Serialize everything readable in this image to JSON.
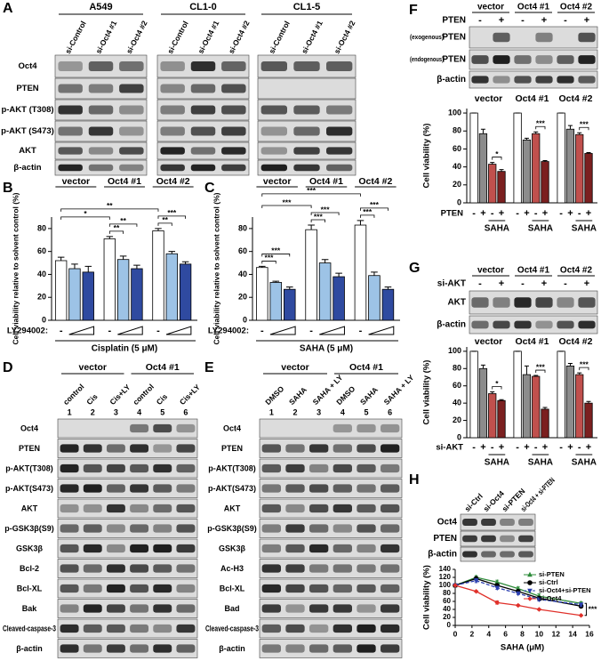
{
  "panel_labels": [
    "A",
    "B",
    "C",
    "D",
    "E",
    "F",
    "G",
    "H"
  ],
  "blots": {
    "A": {
      "groups": [
        "A549",
        "CL1-0",
        "CL1-5"
      ],
      "lanes": [
        "si-Control",
        "si-Oct4 #1",
        "si-Oct4 #2"
      ],
      "rows": [
        "Oct4",
        "PTEN",
        "p-AKT (T308)",
        "p-AKT (S473)",
        "AKT",
        "β-actin"
      ]
    },
    "D": {
      "groups": [
        "vector",
        "Oct4 #1"
      ],
      "lanes": [
        "control",
        "Cis",
        "Cis+LY",
        "control",
        "Cis",
        "Cis+LY"
      ],
      "lane_numbers": [
        1,
        2,
        3,
        4,
        5,
        6
      ],
      "rows": [
        "Oct4",
        "PTEN",
        "p-AKT(T308)",
        "p-AKT(S473)",
        "AKT",
        "p-GSK3β(S9)",
        "GSK3β",
        "Bcl-2",
        "Bcl-XL",
        "Bak",
        "Cleaved-caspase-3",
        "β-actin"
      ]
    },
    "E": {
      "groups": [
        "vector",
        "Oct4 #1"
      ],
      "lanes": [
        "DMSO",
        "SAHA",
        "SAHA + LY",
        "DMSO",
        "SAHA",
        "SAHA + LY"
      ],
      "lane_numbers": [
        1,
        2,
        3,
        4,
        5,
        6
      ],
      "rows": [
        "Oct4",
        "PTEN",
        "p-AKT(T308)",
        "p-AKT(S473)",
        "AKT",
        "p-GSK3β(S9)",
        "GSK3β",
        "Ac-H3",
        "Bcl-XL",
        "Bad",
        "Cleaved-caspase-3",
        "β-actin"
      ]
    },
    "F": {
      "groups": [
        "vector",
        "Oct4 #1",
        "Oct4 #2"
      ],
      "treatment": "PTEN",
      "marks": [
        "-",
        "+"
      ],
      "rows": [
        {
          "note": "(exogenous)",
          "name": "PTEN"
        },
        {
          "note": "(endogenous)",
          "name": "PTEN"
        },
        {
          "name": "β-actin"
        }
      ]
    },
    "G": {
      "groups": [
        "vector",
        "Oct4 #1",
        "Oct4 #2"
      ],
      "treatment": "si-AKT",
      "marks": [
        "-",
        "+"
      ],
      "rows": [
        {
          "name": "AKT"
        },
        {
          "name": "β-actin"
        }
      ]
    },
    "H": {
      "lanes": [
        "si-Ctrl",
        "si-Oct4",
        "si-PTEN",
        "si-Oct4 + si-PTEN"
      ],
      "rows": [
        "Oct4",
        "PTEN",
        "β-actin"
      ]
    }
  },
  "chart_data": [
    {
      "type": "bar",
      "ylabel": "Cell viability relative to solvent control (%)",
      "ylim": [
        0,
        90
      ],
      "yticks": [
        0,
        20,
        40,
        60,
        80
      ],
      "categories": [
        "vector",
        "Oct4 #1",
        "Oct4 #2"
      ],
      "series": [
        {
          "color": "#ffffff",
          "values": [
            52,
            71,
            78
          ],
          "errors": [
            3,
            2,
            2
          ]
        },
        {
          "color": "#9dc3e6",
          "values": [
            45,
            53,
            58
          ],
          "errors": [
            4,
            3,
            2
          ]
        },
        {
          "color": "#2f4aa0",
          "values": [
            42,
            45,
            49
          ],
          "errors": [
            5,
            3,
            2
          ]
        }
      ],
      "treatment": "LY294002:",
      "treatment_marks": [
        "-"
      ],
      "xlabel": "Cisplatin (5 μM)",
      "annotations": [
        "*",
        "**",
        "**",
        "**",
        "***",
        "**"
      ]
    },
    {
      "type": "bar",
      "ylabel": "Cell viability relative to solvent control (%)",
      "ylim": [
        0,
        90
      ],
      "yticks": [
        0,
        20,
        40,
        60,
        80
      ],
      "categories": [
        "vector",
        "Oct4 #1",
        "Oct4 #2"
      ],
      "series": [
        {
          "color": "#ffffff",
          "values": [
            46,
            79,
            83
          ],
          "errors": [
            1,
            4,
            4
          ]
        },
        {
          "color": "#9dc3e6",
          "values": [
            33,
            50,
            39
          ],
          "errors": [
            1,
            3,
            3
          ]
        },
        {
          "color": "#2f4aa0",
          "values": [
            27,
            38,
            27
          ],
          "errors": [
            2,
            3,
            2
          ]
        }
      ],
      "treatment": "LY294002:",
      "treatment_marks": [
        "-"
      ],
      "xlabel": "SAHA (5 μM)",
      "annotations": [
        "***",
        "***",
        "***",
        "***",
        "***",
        "***",
        "***",
        "***"
      ]
    },
    {
      "type": "bar",
      "ylabel": "Cell viability (%)",
      "ylim": [
        0,
        105
      ],
      "yticks": [
        0,
        20,
        40,
        60,
        80,
        100
      ],
      "categories": [
        "vector",
        "Oct4 #1",
        "Oct4 #2"
      ],
      "series": [
        {
          "color": "#ffffff",
          "values": [
            100,
            100,
            100
          ],
          "errors": [
            0,
            0,
            0
          ]
        },
        {
          "color": "#8c8c8c",
          "values": [
            77,
            70,
            82
          ],
          "errors": [
            5,
            2,
            4
          ]
        },
        {
          "color": "#c0504d",
          "values": [
            43,
            77,
            76
          ],
          "errors": [
            2,
            2,
            2
          ]
        },
        {
          "color": "#7b2020",
          "values": [
            35,
            46,
            55
          ],
          "errors": [
            2,
            1,
            1
          ]
        }
      ],
      "treatment": "PTEN",
      "treatment_marks": [
        "-",
        "+",
        "-",
        "+"
      ],
      "xlabel": "SAHA",
      "annotations": [
        "*",
        "***",
        "***"
      ]
    },
    {
      "type": "bar",
      "ylabel": "Cell viability (%)",
      "ylim": [
        0,
        105
      ],
      "yticks": [
        0,
        20,
        40,
        60,
        80,
        100
      ],
      "categories": [
        "vector",
        "Oct4 #1",
        "Oct4 #2"
      ],
      "series": [
        {
          "color": "#ffffff",
          "values": [
            100,
            100,
            100
          ],
          "errors": [
            0,
            0,
            0
          ]
        },
        {
          "color": "#8c8c8c",
          "values": [
            80,
            73,
            83
          ],
          "errors": [
            4,
            10,
            3
          ]
        },
        {
          "color": "#c0504d",
          "values": [
            51,
            71,
            73
          ],
          "errors": [
            2,
            1,
            2
          ]
        },
        {
          "color": "#7b2020",
          "values": [
            43,
            33,
            40
          ],
          "errors": [
            1,
            2,
            2
          ]
        }
      ],
      "treatment": "si-AKT",
      "treatment_marks": [
        "-",
        "+",
        "-",
        "+"
      ],
      "xlabel": "SAHA",
      "annotations": [
        "*",
        "***",
        "***"
      ]
    },
    {
      "type": "line",
      "xlabel": "SAHA (μM)",
      "ylabel": "Cell viability (%)",
      "x": [
        0,
        2.5,
        5,
        7.5,
        10,
        15
      ],
      "xlim": [
        0,
        16
      ],
      "xticks": [
        0,
        2,
        4,
        6,
        8,
        10,
        12,
        14,
        16
      ],
      "ylim": [
        0,
        140
      ],
      "yticks": [
        0,
        20,
        40,
        60,
        80,
        100,
        120,
        140
      ],
      "legend": "upper right",
      "series": [
        {
          "name": "si-PTEN",
          "color": "#2e8b3a",
          "marker": "triangle",
          "line_style": "solid",
          "values": [
            100,
            120,
            108,
            92,
            73,
            55
          ],
          "errors": [
            0,
            4,
            5,
            4,
            6,
            4
          ]
        },
        {
          "name": "si-Ctrl",
          "color": "#000000",
          "marker": "circle",
          "line_style": "solid",
          "values": [
            100,
            117,
            100,
            85,
            68,
            48
          ],
          "errors": [
            0,
            3,
            3,
            3,
            3,
            3
          ]
        },
        {
          "name": "si-Oct4+si-PTEN",
          "color": "#2b3fb0",
          "marker": "triangle-down",
          "line_style": "dashed",
          "values": [
            100,
            112,
            94,
            80,
            65,
            52
          ],
          "errors": [
            0,
            5,
            4,
            3,
            4,
            4
          ]
        },
        {
          "name": "si-Oct4",
          "color": "#e0302a",
          "marker": "diamond",
          "line_style": "solid",
          "values": [
            100,
            85,
            57,
            50,
            40,
            25
          ],
          "errors": [
            0,
            2,
            4,
            2,
            2,
            1
          ]
        }
      ],
      "annotations": [
        "***"
      ]
    }
  ]
}
